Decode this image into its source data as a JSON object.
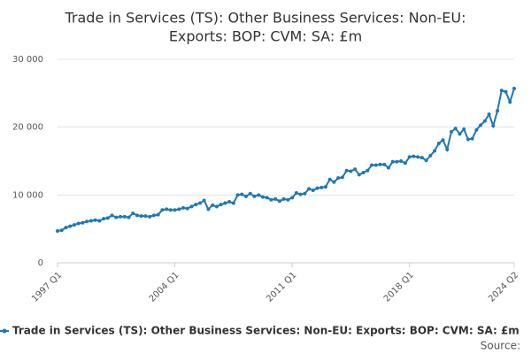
{
  "chart_data": {
    "type": "line",
    "title": [
      "Trade in Services (TS): Other Business Services: Non-EU:",
      "Exports: BOP: CVM: SA: £m"
    ],
    "categories": [
      "1997 Q1",
      null,
      null,
      null,
      null,
      null,
      null,
      null,
      null,
      null,
      null,
      null,
      null,
      null,
      null,
      null,
      null,
      null,
      null,
      null,
      null,
      null,
      null,
      null,
      null,
      null,
      null,
      null,
      "2004 Q1",
      null,
      null,
      null,
      null,
      null,
      null,
      null,
      null,
      null,
      null,
      null,
      null,
      null,
      null,
      null,
      null,
      null,
      null,
      null,
      null,
      null,
      null,
      null,
      null,
      null,
      null,
      null,
      "2011 Q1",
      null,
      null,
      null,
      null,
      null,
      null,
      null,
      null,
      null,
      null,
      null,
      null,
      null,
      null,
      null,
      null,
      null,
      null,
      null,
      null,
      null,
      null,
      null,
      null,
      null,
      null,
      null,
      "2018 Q1",
      null,
      null,
      null,
      null,
      null,
      null,
      null,
      null,
      null,
      null,
      null,
      null,
      null,
      null,
      null,
      null,
      null,
      null,
      null,
      null,
      null,
      null,
      null,
      null,
      "2024 Q2"
    ],
    "series": [
      {
        "name": "Trade in Services (TS): Other Business Services: Non-EU: Exports: BOP: CVM: SA: £m",
        "color": "#1f78b4",
        "values": [
          4700,
          4800,
          5200,
          5400,
          5600,
          5800,
          5900,
          6100,
          6200,
          6300,
          6200,
          6500,
          6600,
          7000,
          6700,
          6800,
          6800,
          6700,
          7300,
          7000,
          6900,
          6900,
          6800,
          7000,
          7100,
          7800,
          7900,
          7800,
          7800,
          7900,
          8100,
          8000,
          8300,
          8600,
          8800,
          9200,
          7900,
          8500,
          8300,
          8600,
          8800,
          9000,
          8800,
          10000,
          10100,
          9800,
          10200,
          9800,
          10000,
          9700,
          9600,
          9300,
          9400,
          9100,
          9400,
          9300,
          9600,
          10300,
          10100,
          10200,
          10900,
          10700,
          11000,
          11100,
          11200,
          12300,
          11900,
          12500,
          12600,
          13600,
          13500,
          13800,
          13000,
          13300,
          13600,
          14400,
          14400,
          14500,
          14500,
          14000,
          14900,
          14900,
          15000,
          14700,
          15600,
          15700,
          15600,
          15500,
          15100,
          15800,
          16500,
          17600,
          18100,
          16700,
          19300,
          19800,
          19000,
          19700,
          18200,
          18300,
          19600,
          20300,
          20900,
          21900,
          20200,
          22400,
          25400,
          25200,
          23700,
          25700
        ]
      }
    ],
    "ylim": [
      0,
      30000
    ],
    "yticks": [
      0,
      {
        "value": 10000,
        "label": "10 000"
      },
      {
        "value": 20000,
        "label": "20 000"
      },
      {
        "value": 30000,
        "label": "30 000"
      }
    ],
    "grid": true,
    "source_label": "Source:"
  }
}
